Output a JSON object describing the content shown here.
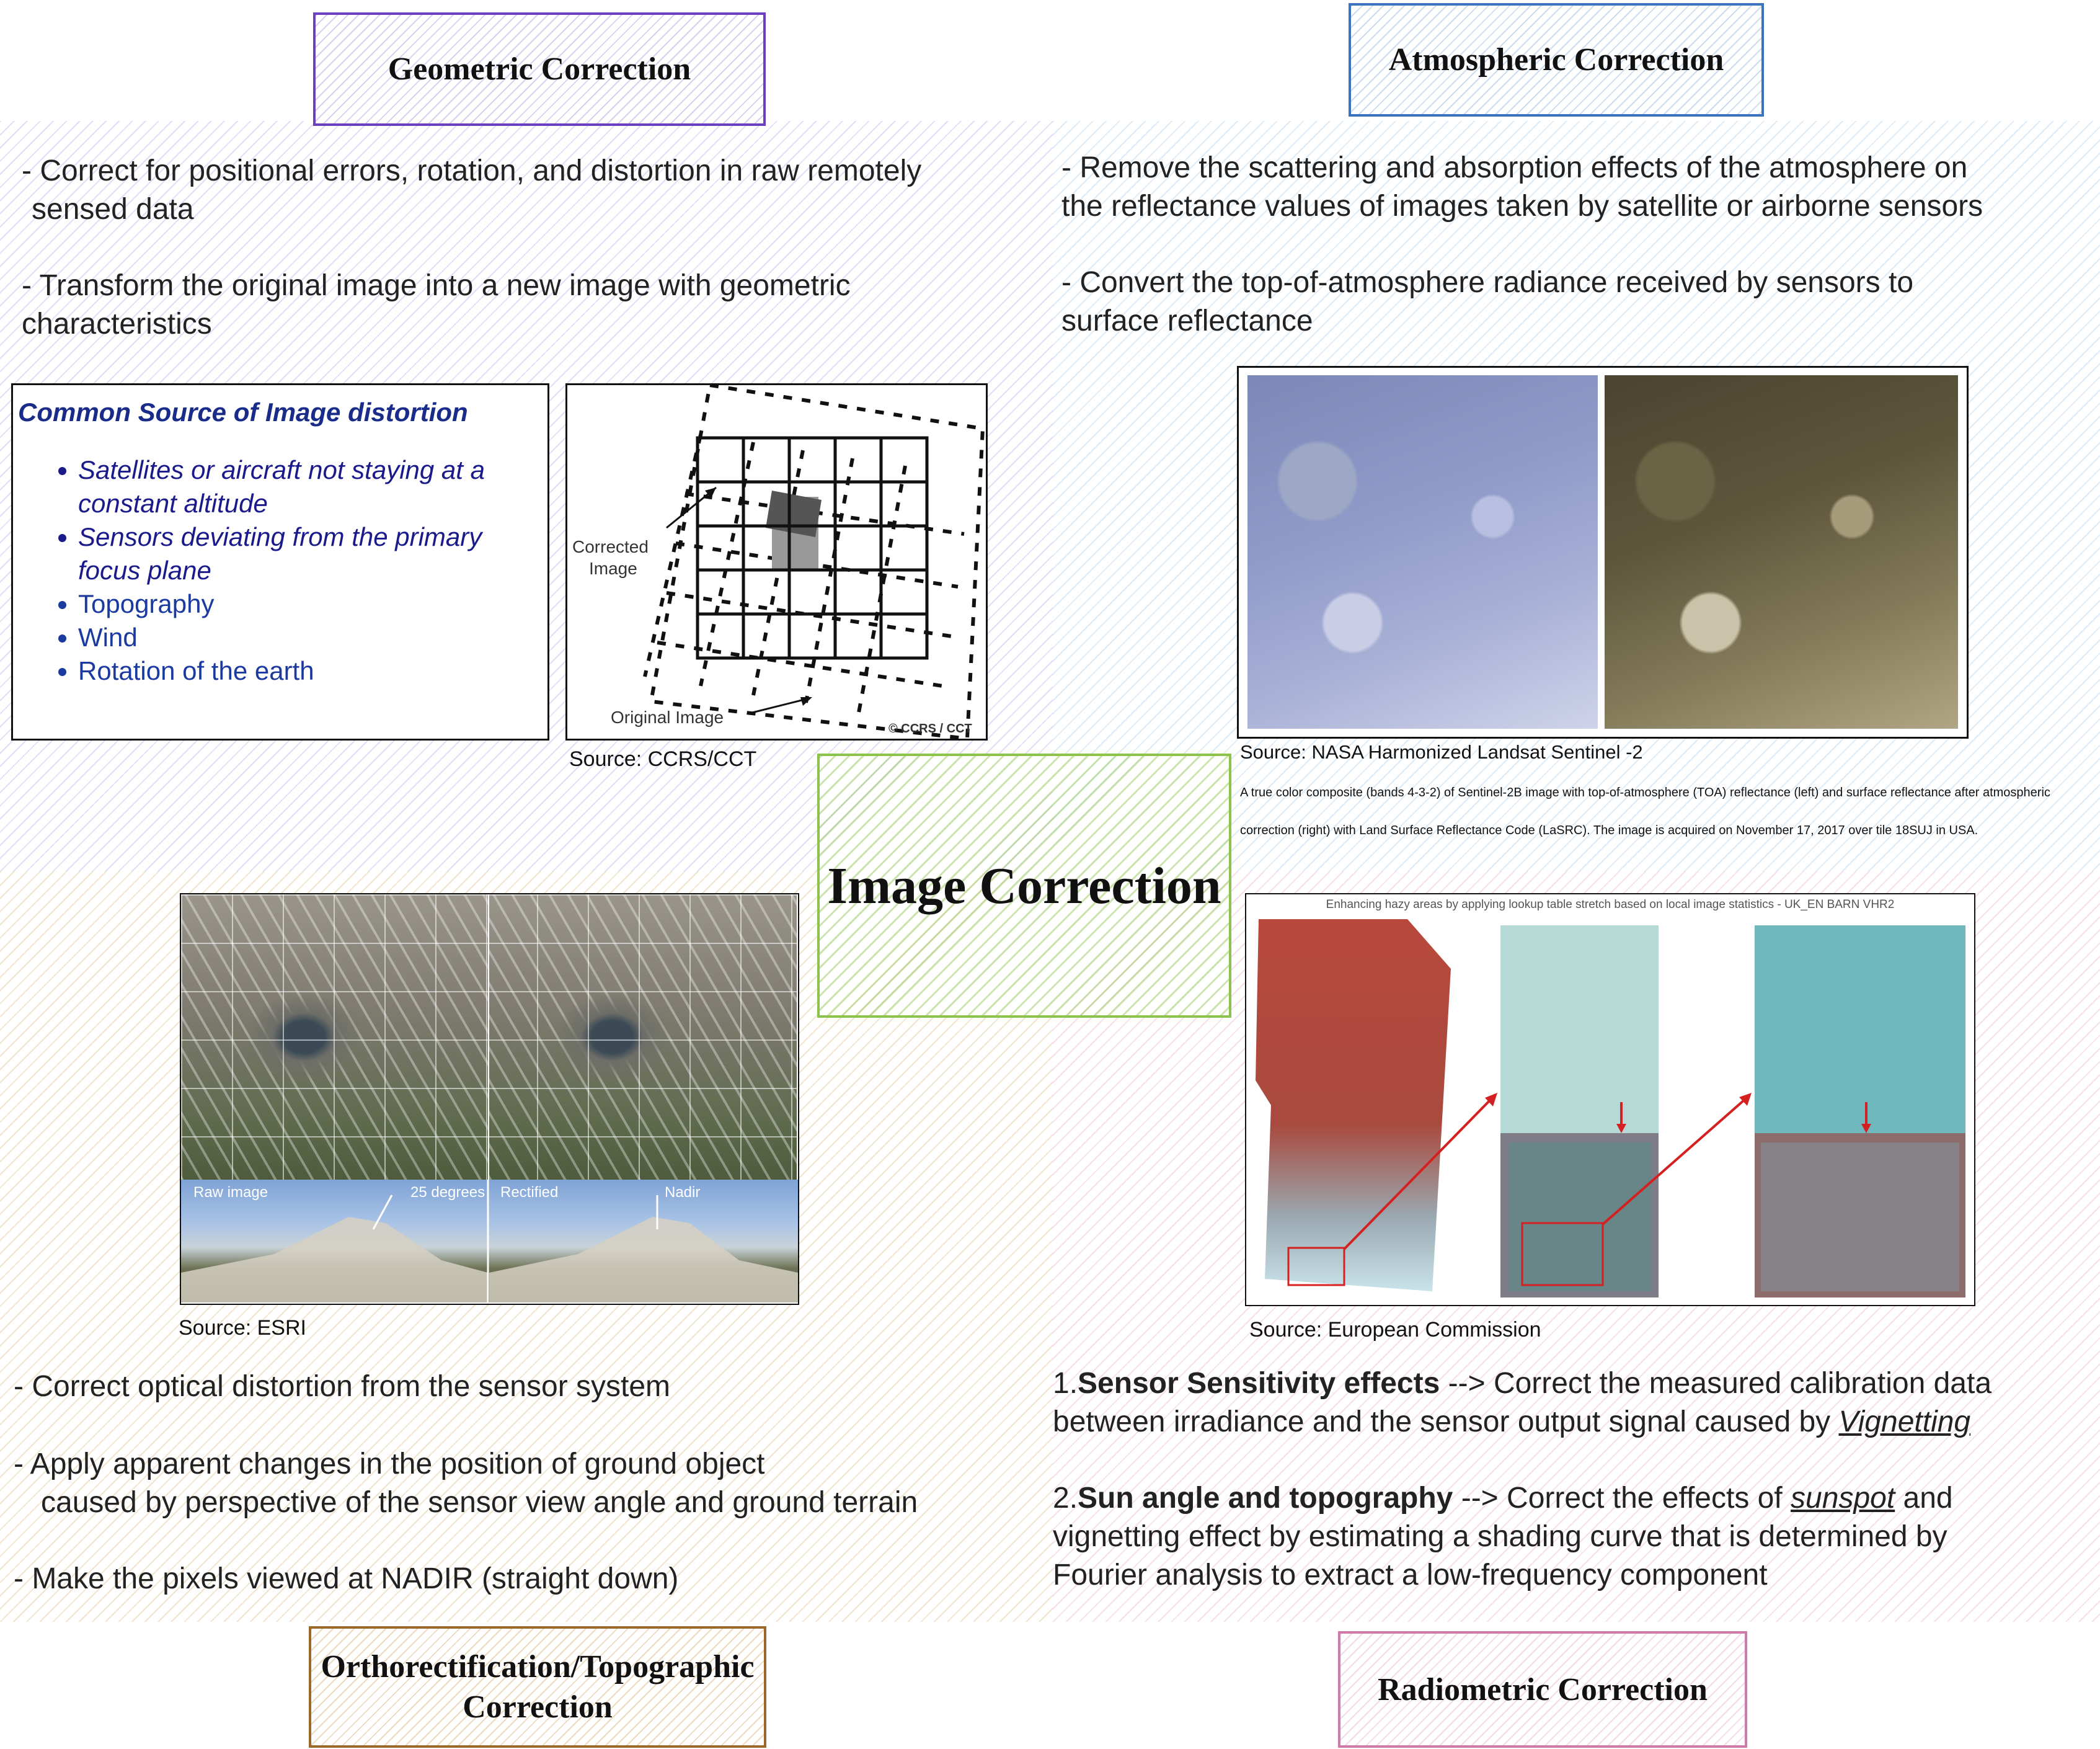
{
  "center": {
    "title": "Image Correction"
  },
  "geometric": {
    "title": "Geometric Correction",
    "bullet1": "- Correct for positional errors, rotation, and distortion in raw remotely",
    "bullet1b": "sensed data",
    "bullet2": "- Transform the original image into a new image with geometric",
    "bullet2b": "characteristics",
    "list_heading": "Common Source of Image distortion",
    "list_items": [
      "Satellites or aircraft not staying at a",
      "constant altitude",
      "Sensors deviating from the primary",
      "focus plane",
      "Topography",
      "Wind",
      "Rotation of the earth"
    ],
    "diagram_labels": {
      "corrected": "Corrected",
      "corrected2": "Image",
      "original": "Original Image",
      "copyright": "© CCRS / CCT"
    },
    "source": "Source: CCRS/CCT"
  },
  "atmospheric": {
    "title": "Atmospheric Correction",
    "bullet1": "- Remove the scattering and absorption effects of the atmosphere on",
    "bullet1b": "the reflectance values of images taken by satellite or airborne sensors",
    "bullet2": "- Convert the top-of-atmosphere radiance received by sensors to",
    "bullet2b": "surface reflectance",
    "source": "Source: NASA Harmonized Landsat Sentinel -2",
    "caption1": "A true color composite (bands 4-3-2) of Sentinel-2B image with top-of-atmosphere (TOA) reflectance (left) and surface reflectance after atmospheric",
    "caption2": "correction (right) with Land Surface Reflectance Code (LaSRC). The image is acquired on November 17, 2017 over tile 18SUJ in USA."
  },
  "ortho": {
    "title_line1": "Orthorectification/Topographic",
    "title_line2": "Correction",
    "bullet1": "- Correct optical distortion from the sensor system",
    "bullet2": "- Apply apparent changes in the position of ground object",
    "bullet2b": "caused by perspective of the sensor view angle and ground terrain",
    "bullet3": "- Make the pixels viewed at NADIR (straight down)",
    "image_labels": {
      "raw": "Raw image",
      "deg": "25 degrees",
      "rect": "Rectified",
      "nadir": "Nadir"
    },
    "source": "Source: ESRI"
  },
  "radiometric": {
    "title": "Radiometric Correction",
    "image_title": "Enhancing hazy areas by applying lookup table stretch based on local image statistics - UK_EN BARN VHR2",
    "source": "Source: European Commission",
    "p1_num": "1.",
    "p1_bold": "Sensor Sensitivity effects",
    "p1_rest": " --> Correct the measured calibration data",
    "p1_line2": "between irradiance and the sensor output signal caused by ",
    "p1_em": "Vignetting",
    "p2_num": "2.",
    "p2_bold": "Sun angle and topography",
    "p2_rest": " --> Correct the effects of ",
    "p2_em": "sunspot",
    "p2_rest2": " and",
    "p2_line2": "vignetting effect by estimating a shading curve that is determined by",
    "p2_line3": "Fourier analysis to extract a low-frequency component"
  }
}
